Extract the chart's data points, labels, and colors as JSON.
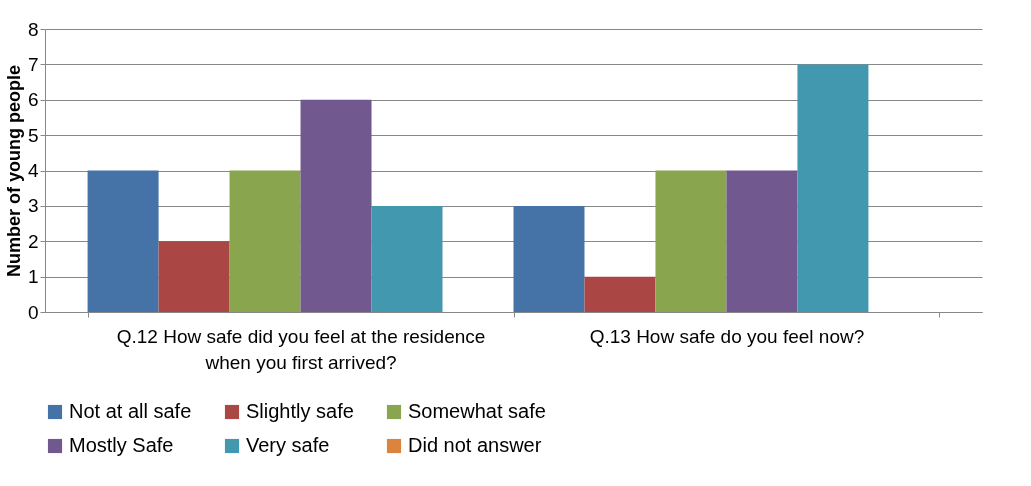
{
  "chart_data": {
    "type": "bar",
    "ylabel": "Number of young people",
    "categories": [
      "Q.12 How safe did you feel at the residence when you first arrived?",
      "Q.13 How safe do you feel now?"
    ],
    "series": [
      {
        "name": "Not at all safe",
        "color": "#4572a7",
        "values": [
          4,
          3
        ]
      },
      {
        "name": "Slightly safe",
        "color": "#aa4643",
        "values": [
          2,
          1
        ]
      },
      {
        "name": "Somewhat safe",
        "color": "#89a54e",
        "values": [
          4,
          4
        ]
      },
      {
        "name": "Mostly Safe",
        "color": "#71588f",
        "values": [
          6,
          4
        ]
      },
      {
        "name": "Very safe",
        "color": "#4198af",
        "values": [
          3,
          7
        ]
      },
      {
        "name": "Did not answer",
        "color": "#db843d",
        "values": [
          0,
          0
        ]
      }
    ],
    "ylim": [
      0,
      8
    ],
    "yticks": [
      0,
      1,
      2,
      3,
      4,
      5,
      6,
      7,
      8
    ],
    "grid": "y",
    "legend": "bottom"
  }
}
